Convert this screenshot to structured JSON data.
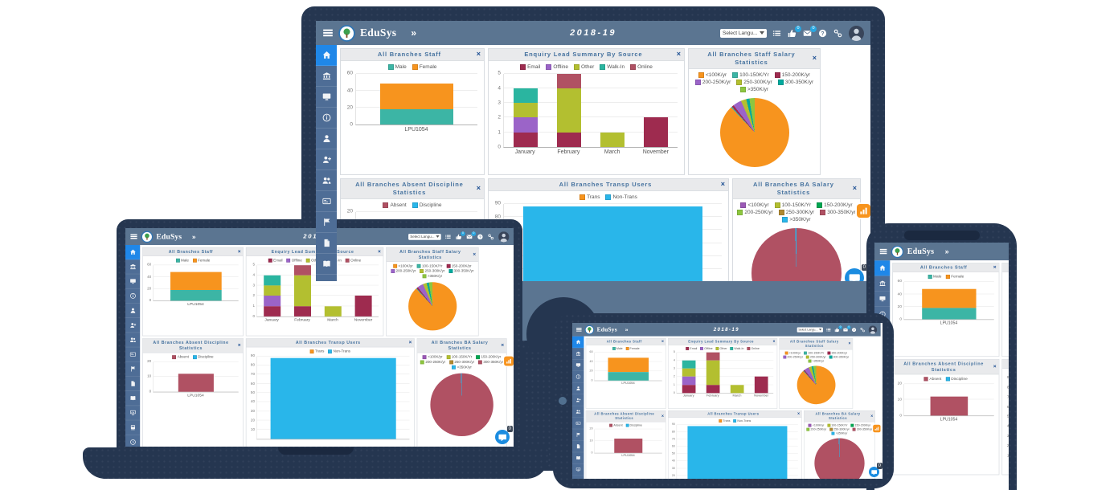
{
  "ui": {
    "close_glyph": "×",
    "header": {
      "brand": "EduSys",
      "chevron": "»",
      "title": "2018-19",
      "language_select": "Select Langu...",
      "actions": [
        {
          "name": "menu-list-button",
          "icon": "list"
        },
        {
          "name": "likes-button",
          "icon": "thumbs-up",
          "badge": "0"
        },
        {
          "name": "messages-button",
          "icon": "mail",
          "badge": "0"
        },
        {
          "name": "help-button",
          "icon": "help"
        },
        {
          "name": "share-link-button",
          "icon": "link"
        },
        {
          "name": "user-avatar",
          "icon": "avatar"
        }
      ]
    },
    "sidebar": {
      "items": [
        {
          "icon": "home",
          "active": true
        },
        {
          "icon": "institution"
        },
        {
          "icon": "monitor"
        },
        {
          "icon": "info"
        },
        {
          "icon": "user"
        },
        {
          "icon": "user-add"
        },
        {
          "icon": "users"
        },
        {
          "icon": "id-card"
        },
        {
          "icon": "flag"
        },
        {
          "icon": "document"
        },
        {
          "icon": "book"
        },
        {
          "icon": "board"
        },
        {
          "icon": "bus"
        },
        {
          "icon": "clock"
        },
        {
          "icon": "star"
        }
      ]
    },
    "fab": {
      "chat_badge": "0"
    }
  },
  "chart_data": [
    {
      "id": "staff",
      "type": "bar",
      "stacked": true,
      "title": "All Branches Staff",
      "categories": [
        "LPU1054"
      ],
      "series": [
        {
          "name": "Male",
          "color": "#3cb5a5",
          "values": [
            18
          ]
        },
        {
          "name": "Female",
          "color": "#f7941e",
          "values": [
            30
          ]
        }
      ],
      "ylim": [
        0,
        60
      ],
      "yticks": [
        0,
        20,
        40,
        60
      ],
      "bar_width_pct": 60
    },
    {
      "id": "enquiry",
      "type": "bar",
      "stacked": true,
      "title": "Enquiry Lead Summary By Source",
      "categories": [
        "January",
        "February",
        "March",
        "November"
      ],
      "series": [
        {
          "name": "Email",
          "color": "#9e2b4f",
          "values": [
            1,
            1,
            0,
            2
          ]
        },
        {
          "name": "Offline",
          "color": "#9b64c8",
          "values": [
            1,
            0,
            0,
            0
          ]
        },
        {
          "name": "Other",
          "color": "#b3bf30",
          "values": [
            1,
            3,
            1,
            0
          ]
        },
        {
          "name": "Walk-In",
          "color": "#2ab5a0",
          "values": [
            1,
            0,
            0,
            0
          ]
        },
        {
          "name": "Online",
          "color": "#b05163",
          "values": [
            0,
            1,
            0,
            0
          ]
        }
      ],
      "ylim": [
        0,
        5
      ],
      "yticks": [
        0,
        1,
        2,
        3,
        4,
        5
      ],
      "bar_width_pct": 55
    },
    {
      "id": "staff_salary",
      "type": "pie",
      "title": "All Branches Staff Salary Statistics",
      "slices": [
        {
          "label": "<100K/yr",
          "color": "#f7941e",
          "value": 88
        },
        {
          "label": "100-150K/Yr",
          "color": "#3cb5a5",
          "value": 0.5
        },
        {
          "label": "150-200K/yr",
          "color": "#9e2b4f",
          "value": 1
        },
        {
          "label": "200-250K/yr",
          "color": "#9b64c8",
          "value": 4
        },
        {
          "label": "250-300K/yr",
          "color": "#b3bf30",
          "value": 2.5
        },
        {
          "label": "300-350K/yr",
          "color": "#00a99d",
          "value": 1.5
        },
        {
          "label": ">350K/yr",
          "color": "#8dc63f",
          "value": 2.5
        }
      ]
    },
    {
      "id": "absent",
      "type": "bar",
      "stacked": true,
      "title": "All Branches Absent Discipline Statistics",
      "categories": [
        "LPU1054"
      ],
      "series": [
        {
          "name": "Absent",
          "color": "#b05163",
          "values": [
            12
          ]
        },
        {
          "name": "Discipline",
          "color": "#29b6ea",
          "values": [
            0
          ]
        }
      ],
      "ylim": [
        0,
        20
      ],
      "yticks": [
        0,
        10,
        20
      ],
      "bar_width_pct": 42
    },
    {
      "id": "transp",
      "type": "bar",
      "stacked": true,
      "title": "All Branches Transp Users",
      "categories": [
        ""
      ],
      "series": [
        {
          "name": "Trans",
          "color": "#f7941e",
          "values": [
            0
          ]
        },
        {
          "name": "Non-Trans",
          "color": "#29b6ea",
          "values": [
            88
          ]
        }
      ],
      "ylim": [
        0,
        90
      ],
      "yticks": [
        10,
        20,
        30,
        40,
        50,
        60,
        70,
        80,
        90
      ],
      "bar_width_pct": 82
    },
    {
      "id": "ba_salary",
      "type": "pie",
      "title": "All Branches BA Salary Statistics",
      "slices": [
        {
          "label": "<100K/yr",
          "color": "#9b59b6",
          "value": 0
        },
        {
          "label": "100-150K/Yr",
          "color": "#b3bf30",
          "value": 0
        },
        {
          "label": "150-200K/yr",
          "color": "#00a651",
          "value": 0
        },
        {
          "label": "200-250K/yr",
          "color": "#8dc63f",
          "value": 0
        },
        {
          "label": "250-300K/yr",
          "color": "#b08930",
          "value": 0
        },
        {
          "label": "300-350K/yr",
          "color": "#b05163",
          "value": 99.5
        },
        {
          "label": ">350K/yr",
          "color": "#29b6ea",
          "value": 0.5
        }
      ]
    }
  ]
}
